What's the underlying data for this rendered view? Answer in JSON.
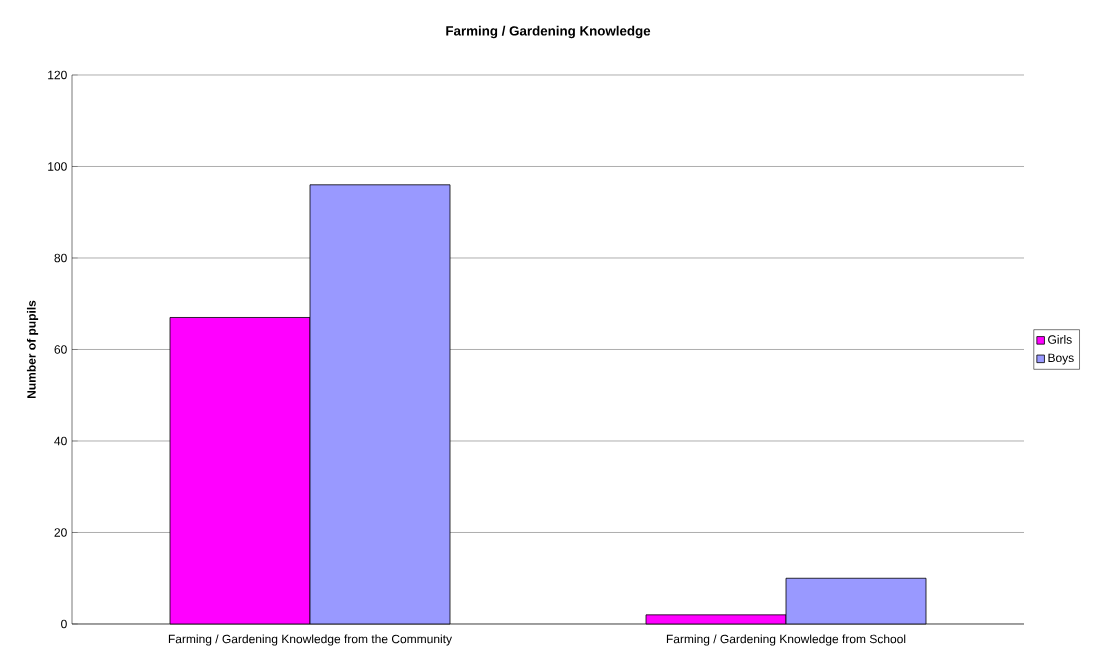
{
  "chart_data": {
    "type": "bar",
    "title": "Farming / Gardening Knowledge",
    "ylabel": "Number of pupils",
    "categories": [
      "Farming / Gardening Knowledge from the Community",
      "Farming / Gardening Knowledge from School"
    ],
    "series": [
      {
        "name": "Girls",
        "color": "#ff00ff",
        "values": [
          67,
          2
        ]
      },
      {
        "name": "Boys",
        "color": "#9999ff",
        "values": [
          96,
          10
        ]
      }
    ],
    "ylim": [
      0,
      120
    ],
    "yticks": [
      0,
      20,
      40,
      60,
      80,
      100,
      120
    ],
    "grid": "y",
    "legend": "right"
  }
}
